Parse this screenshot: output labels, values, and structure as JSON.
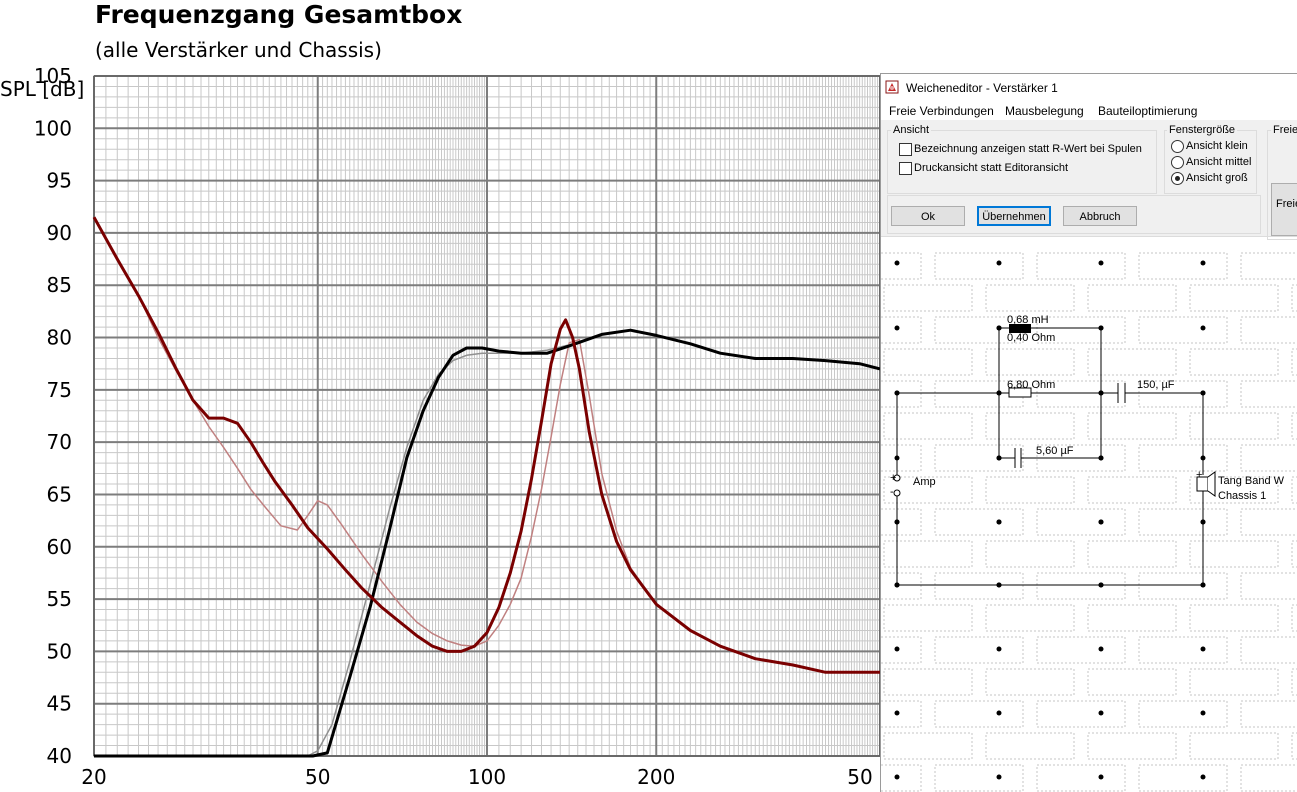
{
  "chart": {
    "title": "Frequenzgang Gesamtbox",
    "subtitle": "(alle Verstärker und Chassis)",
    "y_axis_label": "SPL [dB]",
    "y_ticks": [
      "105",
      "100",
      "95",
      "90",
      "85",
      "80",
      "75",
      "70",
      "65",
      "60",
      "55",
      "50",
      "45",
      "40"
    ],
    "x_ticks": [
      "20",
      "50",
      "100",
      "200",
      "50"
    ]
  },
  "chart_data": {
    "type": "line",
    "title": "Frequenzgang Gesamtbox",
    "subtitle": "(alle Verstärker und Chassis)",
    "xlabel": "",
    "ylabel": "SPL [dB]",
    "x_scale": "log",
    "xlim": [
      20,
      500
    ],
    "ylim": [
      40,
      105
    ],
    "grid": true,
    "series": [
      {
        "color": "#000000",
        "width": 3,
        "x": [
          20,
          40,
          49,
          52,
          57,
          62,
          67,
          72,
          77,
          82,
          87,
          92,
          98,
          105,
          115,
          128,
          140,
          160,
          180,
          200,
          230,
          260,
          300,
          350,
          400,
          460,
          500
        ],
        "y": [
          40,
          40,
          40,
          40.3,
          47.5,
          54.3,
          61.5,
          68.5,
          73,
          76.2,
          78.3,
          79,
          79,
          78.7,
          78.5,
          78.5,
          79.2,
          80.3,
          80.7,
          80.2,
          79.4,
          78.5,
          78,
          78,
          77.8,
          77.5,
          77
        ]
      },
      {
        "color": "#909090",
        "width": 1.5,
        "x": [
          20,
          40,
          48,
          50,
          53,
          57,
          62,
          67,
          72,
          77,
          82,
          87,
          92,
          98,
          105,
          115,
          128,
          140,
          160,
          180,
          200,
          230,
          260,
          300,
          350,
          400,
          460,
          500
        ],
        "y": [
          40,
          40,
          40,
          40.5,
          43,
          49,
          56.5,
          63.5,
          69.5,
          74,
          76.5,
          77.8,
          78.3,
          78.5,
          78.5,
          78.5,
          78.8,
          79.3,
          80.3,
          80.7,
          80.2,
          79.4,
          78.5,
          78,
          78,
          77.8,
          77.5,
          77
        ]
      },
      {
        "color": "#7a0000",
        "width": 3,
        "x": [
          20,
          22,
          24,
          26,
          28,
          30,
          32,
          34,
          36,
          38,
          40,
          42,
          45,
          48,
          52,
          56,
          60,
          65,
          70,
          75,
          80,
          85,
          90,
          95,
          100,
          105,
          110,
          115,
          120,
          125,
          130,
          135,
          138,
          142,
          146,
          152,
          160,
          170,
          180,
          200,
          230,
          260,
          300,
          350,
          400,
          450,
          500
        ],
        "y": [
          91.5,
          87.5,
          84,
          80.5,
          77,
          74,
          72.3,
          72.3,
          71.8,
          70,
          68,
          66.2,
          64,
          61.8,
          59.8,
          57.8,
          56,
          54.2,
          52.8,
          51.5,
          50.5,
          50,
          50,
          50.5,
          51.8,
          54.2,
          57.5,
          61.5,
          66.5,
          72,
          77.5,
          80.8,
          81.7,
          80,
          77,
          71,
          65,
          60.5,
          57.8,
          54.5,
          52,
          50.5,
          49.3,
          48.7,
          48,
          48,
          48
        ]
      },
      {
        "color": "#c08080",
        "width": 1.5,
        "x": [
          20,
          22,
          24,
          26,
          28,
          30,
          32,
          34,
          36,
          38,
          40,
          43,
          46,
          48,
          50,
          52,
          55,
          60,
          65,
          70,
          75,
          80,
          85,
          90,
          95,
          100,
          105,
          110,
          115,
          120,
          125,
          130,
          135,
          140,
          146,
          152,
          160,
          170,
          180,
          200,
          230,
          260,
          300,
          350,
          400,
          450,
          500
        ],
        "y": [
          91.5,
          87.5,
          84,
          80,
          76.8,
          74,
          71.5,
          69.5,
          67.5,
          65.5,
          64,
          62,
          61.6,
          63,
          64.4,
          64,
          62.2,
          59.2,
          56.7,
          54.5,
          52.8,
          51.7,
          51,
          50.6,
          50.5,
          51,
          52.5,
          54.5,
          57,
          61,
          65.5,
          70.5,
          75.5,
          79.5,
          79.8,
          74.5,
          67,
          61.5,
          58,
          54.5,
          52,
          50.5,
          49.3,
          48.7,
          48,
          48,
          48
        ]
      }
    ]
  },
  "dialog": {
    "title": "Weicheneditor - Verstärker 1",
    "menu": [
      "Freie Verbindungen",
      "Mausbelegung",
      "Bauteiloptimierung"
    ],
    "ansicht": {
      "label": "Ansicht",
      "options": [
        {
          "label": "Bezeichnung anzeigen statt R-Wert bei Spulen",
          "checked": false
        },
        {
          "label": "Druckansicht statt Editoransicht",
          "checked": false
        }
      ]
    },
    "fenstergroesse": {
      "label": "Fenstergröße",
      "options": [
        {
          "label": "Ansicht klein",
          "selected": false
        },
        {
          "label": "Ansicht mittel",
          "selected": false
        },
        {
          "label": "Ansicht groß",
          "selected": true
        }
      ]
    },
    "freie_group_label": "Freie",
    "freie_button_label": "Freie",
    "buttons": {
      "ok": "Ok",
      "apply": "Übernehmen",
      "cancel": "Abbruch"
    },
    "schematic": {
      "inductor_value": "0,68 mH",
      "inductor_resistance": "0,40 Ohm",
      "resistor_value": "6,80 Ohm",
      "cap_series_value": "150, µF",
      "cap_parallel_value": "5,60 µF",
      "amp_label": "Amp",
      "driver_name": "Tang Band W",
      "driver_chassis": "Chassis 1",
      "plus_sign": "+",
      "minus_sign": "-"
    }
  }
}
